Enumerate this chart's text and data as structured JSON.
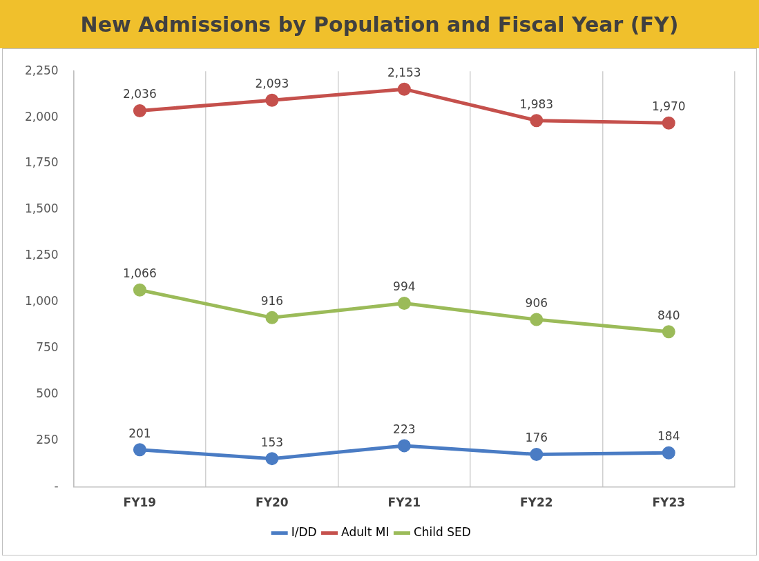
{
  "chart_data": {
    "type": "line",
    "title": "New Admissions by Population and Fiscal Year (FY)",
    "categories": [
      "FY19",
      "FY20",
      "FY21",
      "FY22",
      "FY23"
    ],
    "series": [
      {
        "name": "I/DD",
        "color": "#4a7cc4",
        "values": [
          201,
          153,
          223,
          176,
          184
        ],
        "value_labels": [
          "201",
          "153",
          "223",
          "176",
          "184"
        ]
      },
      {
        "name": "Adult MI",
        "color": "#c5504c",
        "values": [
          2036,
          2093,
          2153,
          1983,
          1970
        ],
        "value_labels": [
          "2,036",
          "2,093",
          "2,153",
          "1,983",
          "1,970"
        ]
      },
      {
        "name": "Child SED",
        "color": "#9bbb59",
        "values": [
          1066,
          916,
          994,
          906,
          840
        ],
        "value_labels": [
          "1,066",
          "916",
          "994",
          "906",
          "840"
        ]
      }
    ],
    "ylim": [
      0,
      2250
    ],
    "yticks": [
      {
        "value": 0,
        "label": "-"
      },
      {
        "value": 250,
        "label": "250"
      },
      {
        "value": 500,
        "label": "500"
      },
      {
        "value": 750,
        "label": "750"
      },
      {
        "value": 1000,
        "label": "1,000"
      },
      {
        "value": 1250,
        "label": "1,250"
      },
      {
        "value": 1500,
        "label": "1,500"
      },
      {
        "value": 1750,
        "label": "1,750"
      },
      {
        "value": 2000,
        "label": "2,000"
      },
      {
        "value": 2250,
        "label": "2,250"
      }
    ],
    "grid": "x",
    "legend": "bottom",
    "marker": "circle",
    "line_style": "solid"
  }
}
